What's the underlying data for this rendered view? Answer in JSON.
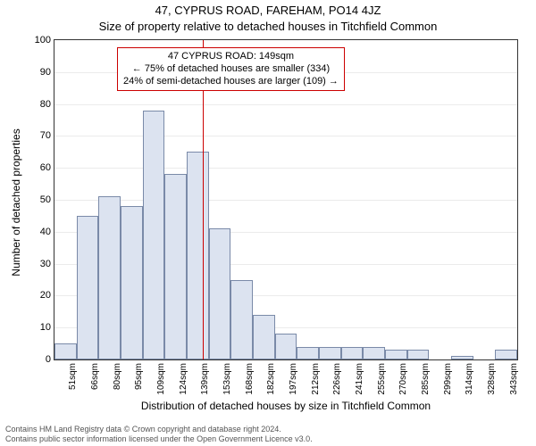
{
  "title": "47, CYPRUS ROAD, FAREHAM, PO14 4JZ",
  "subtitle": "Size of property relative to detached houses in Titchfield Common",
  "y_axis_label": "Number of detached properties",
  "x_axis_label": "Distribution of detached houses by size in Titchfield Common",
  "footer_line1": "Contains HM Land Registry data © Crown copyright and database right 2024.",
  "footer_line2": "Contains public sector information licensed under the Open Government Licence v3.0.",
  "annotation": {
    "line1": "47 CYPRUS ROAD: 149sqm",
    "line2": "← 75% of detached houses are smaller (334)",
    "line3": "24% of semi-detached houses are larger (109) →"
  },
  "chart": {
    "type": "histogram",
    "ylim": [
      0,
      100
    ],
    "ytick_step": 10,
    "background_color": "#ffffff",
    "border_color": "#333333",
    "bar_fill": "#dce3f0",
    "bar_stroke": "#7a8aa8",
    "grid_color": "rgba(0,0,0,0.08)",
    "marker_color": "#cc0000",
    "marker_x_value": 149,
    "x_start": 51,
    "x_step": 14.6,
    "x_labels": [
      "51sqm",
      "66sqm",
      "80sqm",
      "95sqm",
      "109sqm",
      "124sqm",
      "139sqm",
      "153sqm",
      "168sqm",
      "182sqm",
      "197sqm",
      "212sqm",
      "226sqm",
      "241sqm",
      "255sqm",
      "270sqm",
      "285sqm",
      "299sqm",
      "314sqm",
      "328sqm",
      "343sqm"
    ],
    "values": [
      5,
      45,
      51,
      48,
      78,
      58,
      65,
      41,
      25,
      14,
      8,
      4,
      4,
      4,
      4,
      3,
      3,
      0,
      1,
      0,
      3
    ]
  }
}
